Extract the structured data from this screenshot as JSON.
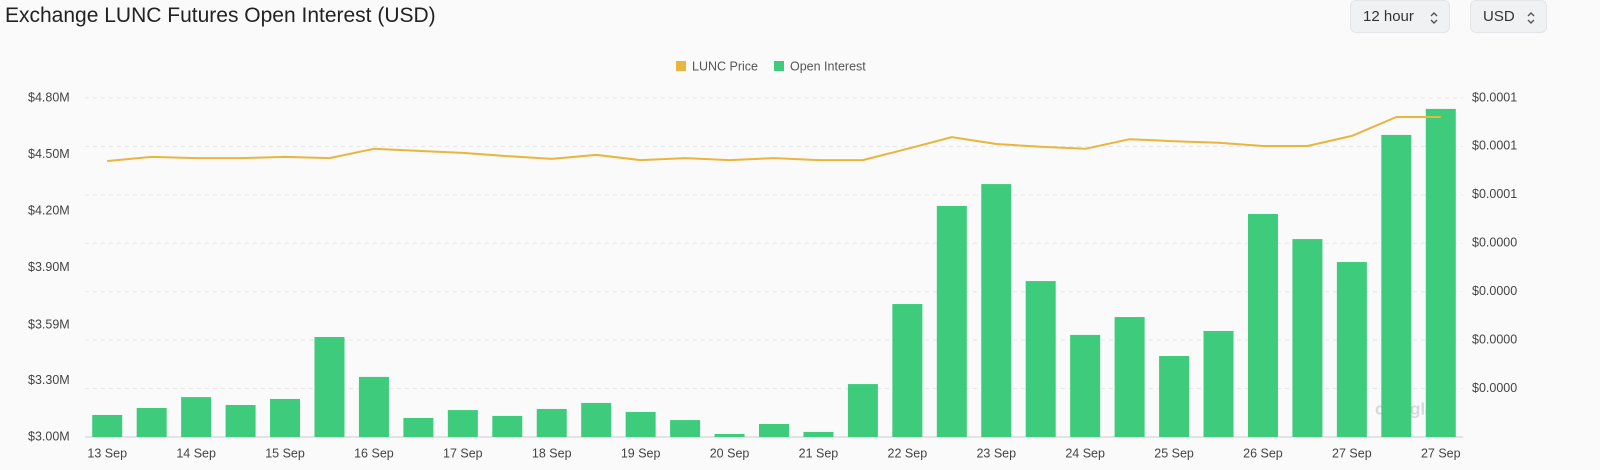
{
  "header": {
    "title": "Exchange LUNC Futures Open Interest (USD)"
  },
  "controls": [
    {
      "label": "12 hour"
    },
    {
      "label": "USD"
    }
  ],
  "chart_data": {
    "type": "bar",
    "watermark": "coinglass",
    "categories": [
      "13 Sep",
      null,
      "14 Sep",
      null,
      "15 Sep",
      null,
      "16 Sep",
      null,
      "17 Sep",
      null,
      "18 Sep",
      null,
      "19 Sep",
      null,
      "20 Sep",
      null,
      "21 Sep",
      null,
      "22 Sep",
      null,
      "23 Sep",
      null,
      "24 Sep",
      null,
      "25 Sep",
      null,
      "26 Sep",
      null,
      "27 Sep",
      null,
      "27 Sep"
    ],
    "series": [
      {
        "name": "LUNC Price",
        "type": "line",
        "axis": "y2",
        "color": "#eab53c",
        "values": [
          6.84e-05,
          6.94e-05,
          6.91e-05,
          6.91e-05,
          6.94e-05,
          6.91e-05,
          7.14e-05,
          7.09e-05,
          7.04e-05,
          6.96e-05,
          6.89e-05,
          6.99e-05,
          6.86e-05,
          6.91e-05,
          6.86e-05,
          6.91e-05,
          6.86e-05,
          6.86e-05,
          7.14e-05,
          7.43e-05,
          7.26e-05,
          7.19e-05,
          7.14e-05,
          7.38e-05,
          7.33e-05,
          7.29e-05,
          7.21e-05,
          7.21e-05,
          7.46e-05,
          7.93e-05,
          7.93e-05
        ]
      },
      {
        "name": "Open Interest",
        "type": "bar",
        "color": "#3ecc7c",
        "values": [
          3117000,
          3154000,
          3212000,
          3170000,
          3202000,
          3531000,
          3319000,
          3101000,
          3143000,
          3112000,
          3149000,
          3181000,
          3133000,
          3090000,
          3016000,
          3069000,
          3027000,
          3281000,
          3706000,
          4227000,
          4343000,
          3828000,
          3542000,
          3637000,
          3430000,
          3563000,
          4184000,
          4051000,
          3929000,
          4604000,
          4742000
        ]
      }
    ],
    "ylim": [
      3000000,
      4800000
    ],
    "yticks": [
      {
        "value": 3000000,
        "label": "$3.00M"
      },
      {
        "value": 3300000,
        "label": "$3.30M"
      },
      {
        "value": 3594000,
        "label": "$3.59M"
      },
      {
        "value": 3900000,
        "label": "$3.90M"
      },
      {
        "value": 4200000,
        "label": "$4.20M"
      },
      {
        "value": 4500000,
        "label": "$4.50M"
      },
      {
        "value": 4800000,
        "label": "$4.80M"
      }
    ],
    "y2lim": [
      0,
      8.4e-05
    ],
    "y2ticks": [
      {
        "value": 1.2e-05,
        "label": "$0.0000"
      },
      {
        "value": 2.4e-05,
        "label": "$0.0000"
      },
      {
        "value": 3.6e-05,
        "label": "$0.0000"
      },
      {
        "value": 4.8e-05,
        "label": "$0.0000"
      },
      {
        "value": 6e-05,
        "label": "$0.0001"
      },
      {
        "value": 7.2e-05,
        "label": "$0.0001"
      },
      {
        "value": 8.4e-05,
        "label": "$0.0001"
      }
    ],
    "grid": true,
    "legend": "top"
  }
}
